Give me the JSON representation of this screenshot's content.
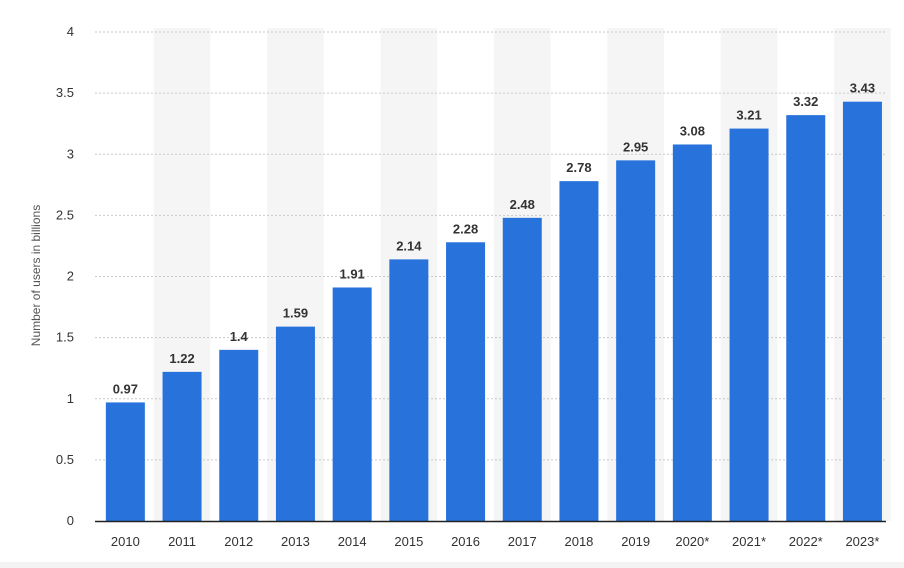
{
  "chart_data": {
    "type": "bar",
    "categories": [
      "2010",
      "2011",
      "2012",
      "2013",
      "2014",
      "2015",
      "2016",
      "2017",
      "2018",
      "2019",
      "2020*",
      "2021*",
      "2022*",
      "2023*"
    ],
    "values": [
      0.97,
      1.22,
      1.4,
      1.59,
      1.91,
      2.14,
      2.28,
      2.48,
      2.78,
      2.95,
      3.08,
      3.21,
      3.32,
      3.43
    ],
    "value_labels": [
      "0.97",
      "1.22",
      "1.4",
      "1.59",
      "1.91",
      "2.14",
      "2.28",
      "2.48",
      "2.78",
      "2.95",
      "3.08",
      "3.21",
      "3.32",
      "3.43"
    ],
    "yticks": [
      "0",
      "0.5",
      "1",
      "1.5",
      "2",
      "2.5",
      "3",
      "3.5",
      "4"
    ],
    "ylim": [
      0,
      4
    ],
    "ylabel": "Number of users in billions",
    "xlabel": "",
    "title": "",
    "grid": true,
    "legend": "none",
    "colors": {
      "bar": "#2872dc",
      "grid": "#c9c9c9",
      "band": "#f5f5f5",
      "axis": "#222222"
    }
  }
}
